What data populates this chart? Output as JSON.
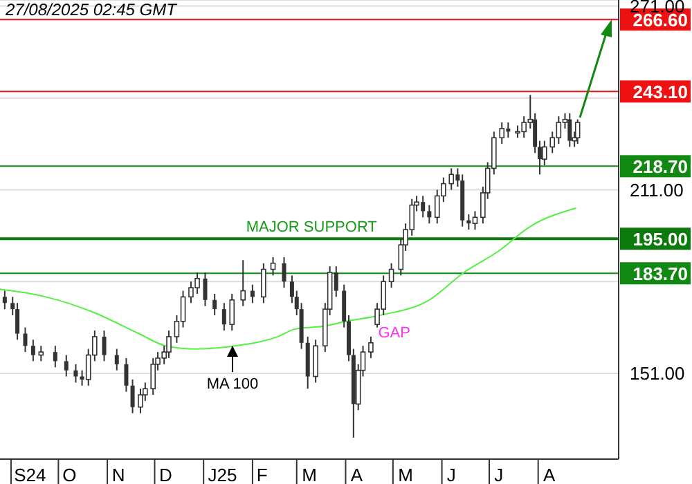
{
  "chart_data": {
    "type": "candlestick",
    "color": "#333333",
    "x": [
      "2024-08-28",
      "2024-09-02",
      "2024-09-05",
      "2024-09-10",
      "2024-09-15",
      "2024-09-20",
      "2024-09-29",
      "2024-10-06",
      "2024-10-12",
      "2024-10-16",
      "2024-10-20",
      "2024-10-24",
      "2024-10-30",
      "2024-11-07",
      "2024-11-13",
      "2024-11-17",
      "2024-11-22",
      "2024-11-25",
      "2024-11-30",
      "2024-12-03",
      "2024-12-07",
      "2024-12-10",
      "2024-12-15",
      "2024-12-19",
      "2024-12-24",
      "2024-12-28",
      "2025-01-02",
      "2025-01-08",
      "2025-01-14",
      "2025-01-19",
      "2025-01-26",
      "2025-02-01",
      "2025-02-08",
      "2025-02-14",
      "2025-02-21",
      "2025-02-26",
      "2025-03-01",
      "2025-03-04",
      "2025-03-08",
      "2025-03-13",
      "2025-03-19",
      "2025-03-22",
      "2025-03-26",
      "2025-03-31",
      "2025-04-03",
      "2025-04-06",
      "2025-04-09",
      "2025-04-12",
      "2025-04-17",
      "2025-04-21",
      "2025-04-25",
      "2025-04-30",
      "2025-05-06",
      "2025-05-09",
      "2025-05-13",
      "2025-05-16",
      "2025-05-20",
      "2025-05-24",
      "2025-05-29",
      "2025-06-02",
      "2025-06-07",
      "2025-06-11",
      "2025-06-14",
      "2025-06-18",
      "2025-06-22",
      "2025-06-27",
      "2025-06-30",
      "2025-07-04",
      "2025-07-09",
      "2025-07-13",
      "2025-07-19",
      "2025-07-23",
      "2025-07-27",
      "2025-07-30",
      "2025-08-02",
      "2025-08-05",
      "2025-08-10",
      "2025-08-14",
      "2025-08-18",
      "2025-08-21",
      "2025-08-24",
      "2025-08-26"
    ],
    "ohlc": [
      [
        176,
        178,
        172,
        174
      ],
      [
        174,
        176,
        170,
        172
      ],
      [
        172,
        174,
        162,
        164
      ],
      [
        164,
        166,
        158,
        160
      ],
      [
        160,
        162,
        155,
        157
      ],
      [
        157,
        160,
        155,
        158
      ],
      [
        158,
        160,
        153,
        155
      ],
      [
        155,
        157,
        150,
        152
      ],
      [
        152,
        154,
        148,
        150
      ],
      [
        150,
        152,
        147,
        149
      ],
      [
        149,
        159,
        147,
        157
      ],
      [
        157,
        165,
        155,
        163
      ],
      [
        163,
        165,
        155,
        157
      ],
      [
        157,
        159,
        152,
        154
      ],
      [
        154,
        156,
        145,
        147
      ],
      [
        147,
        149,
        138,
        140
      ],
      [
        140,
        146,
        138,
        144
      ],
      [
        144,
        148,
        142,
        146
      ],
      [
        146,
        156,
        144,
        154
      ],
      [
        154,
        158,
        152,
        156
      ],
      [
        156,
        160,
        154,
        158
      ],
      [
        158,
        165,
        156,
        163
      ],
      [
        163,
        170,
        161,
        168
      ],
      [
        168,
        178,
        166,
        176
      ],
      [
        176,
        181,
        174,
        179
      ],
      [
        179,
        184,
        177,
        182
      ],
      [
        182,
        184,
        173,
        175
      ],
      [
        175,
        177,
        170,
        172
      ],
      [
        172,
        174,
        165,
        167
      ],
      [
        167,
        177,
        165,
        175
      ],
      [
        175,
        188,
        173,
        178
      ],
      [
        178,
        180,
        174,
        176
      ],
      [
        176,
        187,
        174,
        185
      ],
      [
        185,
        189,
        183,
        187
      ],
      [
        187,
        189,
        179,
        181
      ],
      [
        181,
        183,
        174,
        176
      ],
      [
        176,
        178,
        170,
        172
      ],
      [
        172,
        174,
        159,
        161
      ],
      [
        161,
        163,
        146,
        150
      ],
      [
        150,
        162,
        148,
        160
      ],
      [
        160,
        174,
        158,
        172
      ],
      [
        172,
        186,
        170,
        184
      ],
      [
        184,
        186,
        176,
        178
      ],
      [
        178,
        180,
        166,
        168
      ],
      [
        168,
        170,
        155,
        157
      ],
      [
        157,
        159,
        130,
        141
      ],
      [
        141,
        154,
        139,
        152
      ],
      [
        152,
        160,
        150,
        158
      ],
      [
        158,
        163,
        156,
        161
      ],
      [
        167,
        174,
        166,
        172
      ],
      [
        172,
        183,
        170,
        181
      ],
      [
        181,
        187,
        179,
        185
      ],
      [
        185,
        195,
        183,
        193
      ],
      [
        193,
        200,
        191,
        198
      ],
      [
        198,
        208,
        196,
        206
      ],
      [
        206,
        209,
        204,
        207
      ],
      [
        207,
        209,
        202,
        204
      ],
      [
        204,
        206,
        200,
        202
      ],
      [
        202,
        211,
        200,
        209
      ],
      [
        209,
        215,
        207,
        213
      ],
      [
        213,
        218,
        211,
        216
      ],
      [
        216,
        218,
        212,
        214
      ],
      [
        214,
        216,
        199,
        201
      ],
      [
        201,
        203,
        198,
        200
      ],
      [
        200,
        204,
        198,
        202
      ],
      [
        202,
        212,
        200,
        210
      ],
      [
        210,
        220,
        208,
        218
      ],
      [
        218,
        230,
        216,
        228
      ],
      [
        228,
        233,
        226,
        231
      ],
      [
        231,
        233,
        228,
        230
      ],
      [
        230,
        232,
        228,
        230
      ],
      [
        230,
        235,
        228,
        233
      ],
      [
        233,
        242,
        231,
        234
      ],
      [
        234,
        236,
        223,
        225
      ],
      [
        225,
        227,
        216,
        221
      ],
      [
        221,
        227,
        219,
        225
      ],
      [
        225,
        230,
        223,
        228
      ],
      [
        228,
        235,
        226,
        233
      ],
      [
        233,
        236,
        231,
        234
      ],
      [
        234,
        236,
        225,
        227
      ],
      [
        227,
        230,
        225,
        228
      ],
      [
        228,
        234,
        226,
        233
      ]
    ],
    "series": [
      {
        "type": "line",
        "name": "MA 100",
        "color": "#55ee44",
        "x": [
          "2024-08-25",
          "2024-09-23",
          "2024-10-23",
          "2024-11-21",
          "2024-12-08",
          "2024-12-26",
          "2025-01-21",
          "2025-02-17",
          "2025-02-28",
          "2025-03-19",
          "2025-04-01",
          "2025-04-23",
          "2025-05-24",
          "2025-06-15",
          "2025-07-07",
          "2025-07-27",
          "2025-08-25"
        ],
        "values": [
          178.5,
          176,
          171,
          164,
          160,
          159,
          160,
          163,
          165.5,
          166.5,
          168,
          170,
          175,
          184,
          191,
          199,
          205
        ]
      }
    ],
    "xlim": [
      "2024-08-25",
      "2025-09-21"
    ],
    "xticks": [
      {
        "value": "2024-09-13",
        "label": "S24"
      },
      {
        "value": "2024-10-08",
        "label": "O"
      },
      {
        "value": "2024-11-08",
        "label": "N"
      },
      {
        "value": "2024-12-08",
        "label": "D"
      },
      {
        "value": "2025-01-13",
        "label": "J25"
      },
      {
        "value": "2025-02-07",
        "label": "F"
      },
      {
        "value": "2025-03-09",
        "label": "M"
      },
      {
        "value": "2025-04-08",
        "label": "A"
      },
      {
        "value": "2025-05-09",
        "label": "M"
      },
      {
        "value": "2025-06-07",
        "label": "J"
      },
      {
        "value": "2025-07-07",
        "label": "J"
      },
      {
        "value": "2025-08-08",
        "label": "A"
      }
    ],
    "ylim": [
      123,
      273
    ],
    "yticks": [
      {
        "value": 151,
        "label": "151.00"
      },
      {
        "value": 181,
        "label": null
      },
      {
        "value": 211,
        "label": "211.00"
      },
      {
        "value": 241,
        "label": null
      },
      {
        "value": 271,
        "label": "271.00"
      }
    ],
    "grid": "y",
    "ref_lines": [
      {
        "axis": "y",
        "value": 266.6,
        "label": "266.60",
        "color": "#ee1111"
      },
      {
        "axis": "y",
        "value": 243.1,
        "label": "243.10",
        "color": "#ee1111"
      },
      {
        "axis": "y",
        "value": 218.7,
        "label": "218.70",
        "color": "#118811"
      },
      {
        "axis": "y",
        "value": 195,
        "label": "195.00",
        "color": "#0c7a0c"
      },
      {
        "axis": "y",
        "value": 183.7,
        "label": "183.70",
        "color": "#118811"
      }
    ],
    "annotations": [
      "27/08/2025 02:45 GMT",
      {
        "text": "MAJOR SUPPORT",
        "x": "2025-01-28",
        "y": 195
      },
      {
        "text": "GAP",
        "x": "2025-04-19",
        "y": 164.5
      }
    ]
  }
}
